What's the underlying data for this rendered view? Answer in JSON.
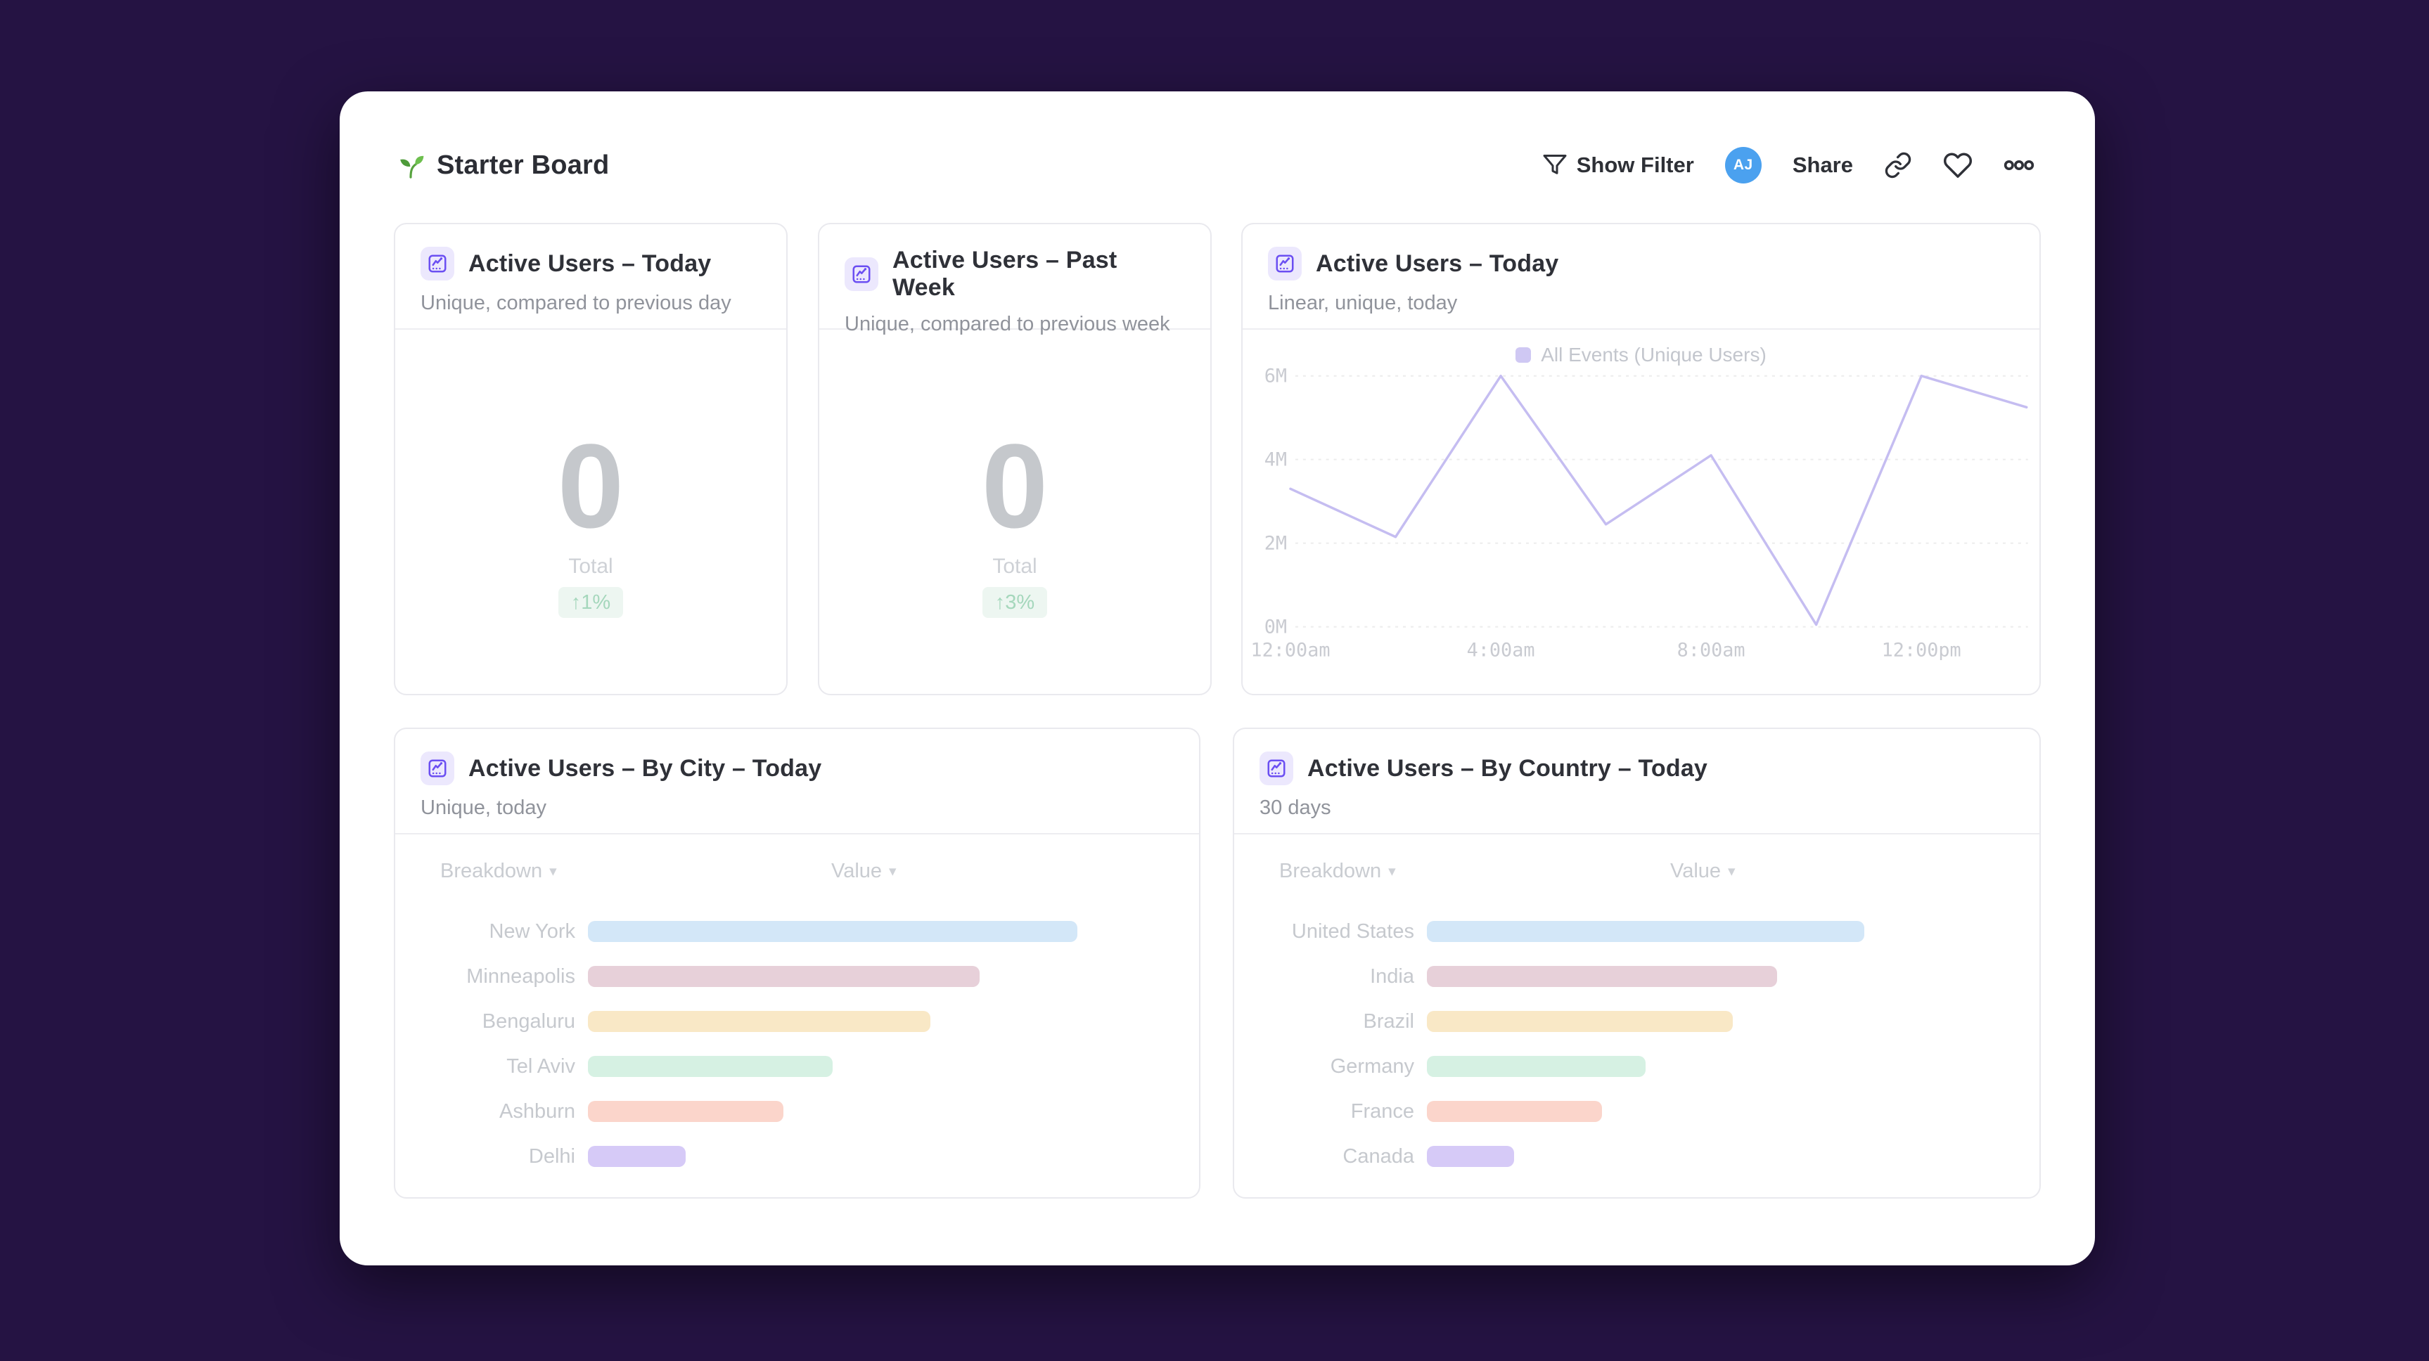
{
  "colors": {
    "page_bg": "#251343",
    "accent_purple": "#6b4ff2",
    "avatar_blue": "#4ba1ef",
    "line_series": "#c5bdf1",
    "delta_green_text": "#a5d7bc",
    "delta_green_bg": "#edf6f1"
  },
  "header": {
    "emoji_icon": "seedling-icon",
    "title": "Starter Board",
    "show_filter_label": "Show Filter",
    "avatar_initials": "AJ",
    "share_label": "Share",
    "icons": [
      "filter-icon",
      "link-icon",
      "heart-icon",
      "more-icon"
    ]
  },
  "cards": {
    "today": {
      "title": "Active Users – Today",
      "subtitle": "Unique, compared to previous day",
      "value": "0",
      "value_label": "Total",
      "delta": "↑1%"
    },
    "past_week": {
      "title": "Active Users – Past Week",
      "subtitle": "Unique, compared to previous week",
      "value": "0",
      "value_label": "Total",
      "delta": "↑3%"
    },
    "today_chart": {
      "title": "Active Users – Today",
      "subtitle": "Linear, unique, today",
      "legend": "All Events (Unique Users)"
    },
    "by_city": {
      "title": "Active Users – By City – Today",
      "subtitle": "Unique, today",
      "col_breakdown": "Breakdown",
      "col_value": "Value",
      "caret": "▾",
      "rows": [
        {
          "label": "New York",
          "value_pct": 100,
          "color": "#d3e7f8"
        },
        {
          "label": "Minneapolis",
          "value_pct": 80,
          "color": "#e7d0d9"
        },
        {
          "label": "Bengaluru",
          "value_pct": 70,
          "color": "#f9e8c6"
        },
        {
          "label": "Tel Aviv",
          "value_pct": 50,
          "color": "#d6f1e3"
        },
        {
          "label": "Ashburn",
          "value_pct": 40,
          "color": "#fbd5cb"
        },
        {
          "label": "Delhi",
          "value_pct": 20,
          "color": "#d6caf7"
        }
      ]
    },
    "by_country": {
      "title": "Active Users – By Country – Today",
      "subtitle": "30 days",
      "col_breakdown": "Breakdown",
      "col_value": "Value",
      "caret": "▾",
      "rows": [
        {
          "label": "United States",
          "value_pct": 100,
          "color": "#d3e7f8"
        },
        {
          "label": "India",
          "value_pct": 80,
          "color": "#e7d0d9"
        },
        {
          "label": "Brazil",
          "value_pct": 70,
          "color": "#f9e8c6"
        },
        {
          "label": "Germany",
          "value_pct": 50,
          "color": "#d6f1e3"
        },
        {
          "label": "France",
          "value_pct": 40,
          "color": "#fbd5cb"
        },
        {
          "label": "Canada",
          "value_pct": 20,
          "color": "#d6caf7"
        }
      ]
    }
  },
  "chart_data": [
    {
      "type": "line",
      "title": "Active Users – Today",
      "legend_position": "top",
      "grid": "horizontal-dashed",
      "ylim_millions": [
        0,
        6
      ],
      "yticks": [
        "0M",
        "2M",
        "4M",
        "6M"
      ],
      "xticks": [
        "12:00am",
        "4:00am",
        "8:00am",
        "12:00pm"
      ],
      "series": [
        {
          "name": "All Events (Unique Users)",
          "color": "#c5bdf1",
          "x": [
            "12:00am",
            "2:00am",
            "4:00am",
            "6:00am",
            "8:00am",
            "10:00am",
            "12:00pm",
            "2:00pm"
          ],
          "values_millions": [
            3.3,
            2.15,
            6.0,
            2.45,
            4.1,
            0.05,
            6.0,
            5.25
          ]
        }
      ]
    },
    {
      "type": "bar",
      "title": "Active Users – By City – Today",
      "categories": [
        "New York",
        "Minneapolis",
        "Bengaluru",
        "Tel Aviv",
        "Ashburn",
        "Delhi"
      ],
      "values_relative_pct": [
        100,
        80,
        70,
        50,
        40,
        20
      ]
    },
    {
      "type": "bar",
      "title": "Active Users – By Country – Today",
      "categories": [
        "United States",
        "India",
        "Brazil",
        "Germany",
        "France",
        "Canada"
      ],
      "values_relative_pct": [
        100,
        80,
        70,
        50,
        40,
        20
      ]
    }
  ]
}
